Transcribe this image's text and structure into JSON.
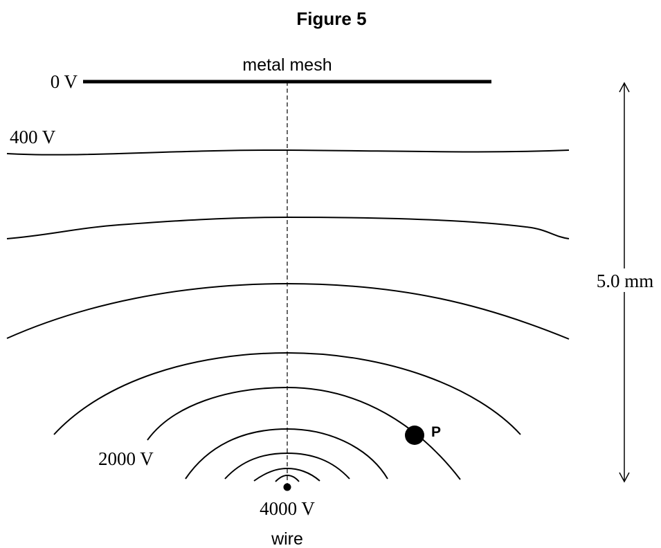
{
  "figure": {
    "title": "Figure 5"
  },
  "labels": {
    "mesh": "metal mesh",
    "mesh_voltage": "0 V",
    "first_equipotential": "400 V",
    "middle_equipotential": "2000 V",
    "wire_voltage": "4000 V",
    "wire": "wire",
    "point": "P",
    "distance": "5.0 mm"
  },
  "colors": {
    "ink": "#000000",
    "background": "#ffffff"
  }
}
